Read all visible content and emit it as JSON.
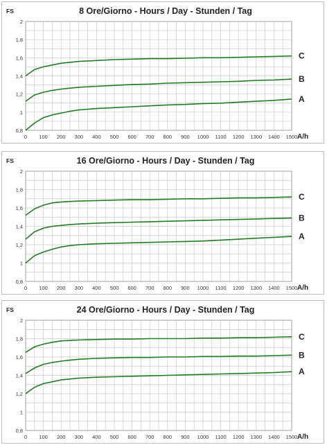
{
  "chart_data": [
    {
      "type": "line",
      "title": "8 Ore/Giorno - Hours / Day - Stunden / Tag",
      "ylabel": "FS",
      "xlabel": "A/h",
      "xlim": [
        0,
        1500
      ],
      "ylim": [
        0.8,
        2
      ],
      "x_ticks": [
        "0",
        "100",
        "200",
        "300",
        "400",
        "500",
        "600",
        "700",
        "800",
        "900",
        "1000",
        "1100",
        "1200",
        "1300",
        "1400",
        "1500"
      ],
      "y_ticks": [
        "0,8",
        "1",
        "1,2",
        "1,4",
        "1,6",
        "1,8",
        "2"
      ],
      "grid": true,
      "x": [
        0,
        50,
        100,
        150,
        200,
        250,
        300,
        400,
        500,
        600,
        700,
        800,
        900,
        1000,
        1100,
        1200,
        1300,
        1400,
        1500
      ],
      "series": [
        {
          "name": "C",
          "values": [
            1.4,
            1.47,
            1.5,
            1.52,
            1.54,
            1.55,
            1.56,
            1.57,
            1.58,
            1.585,
            1.59,
            1.59,
            1.595,
            1.6,
            1.6,
            1.605,
            1.61,
            1.615,
            1.62
          ]
        },
        {
          "name": "B",
          "values": [
            1.12,
            1.19,
            1.22,
            1.24,
            1.255,
            1.265,
            1.275,
            1.285,
            1.295,
            1.305,
            1.31,
            1.32,
            1.325,
            1.33,
            1.335,
            1.34,
            1.35,
            1.355,
            1.365
          ]
        },
        {
          "name": "A",
          "values": [
            0.8,
            0.88,
            0.94,
            0.97,
            0.99,
            1.01,
            1.025,
            1.04,
            1.05,
            1.06,
            1.07,
            1.08,
            1.085,
            1.095,
            1.1,
            1.11,
            1.12,
            1.13,
            1.145
          ]
        }
      ]
    },
    {
      "type": "line",
      "title": "16 Ore/Giorno - Hours / Day - Stunden / Tag",
      "ylabel": "FS",
      "xlabel": "A/h",
      "xlim": [
        0,
        1500
      ],
      "ylim": [
        0.8,
        2
      ],
      "x_ticks": [
        "0",
        "100",
        "200",
        "300",
        "400",
        "500",
        "600",
        "700",
        "800",
        "900",
        "1000",
        "1100",
        "1200",
        "1300",
        "1400",
        "1500"
      ],
      "y_ticks": [
        "0,8",
        "1",
        "1,2",
        "1,4",
        "1,6",
        "1,8",
        "2"
      ],
      "grid": true,
      "x": [
        0,
        50,
        100,
        150,
        200,
        250,
        300,
        400,
        500,
        600,
        700,
        800,
        900,
        1000,
        1100,
        1200,
        1300,
        1400,
        1500
      ],
      "series": [
        {
          "name": "C",
          "values": [
            1.52,
            1.59,
            1.63,
            1.655,
            1.665,
            1.67,
            1.675,
            1.68,
            1.685,
            1.69,
            1.69,
            1.695,
            1.7,
            1.7,
            1.705,
            1.71,
            1.71,
            1.715,
            1.72
          ]
        },
        {
          "name": "B",
          "values": [
            1.26,
            1.34,
            1.38,
            1.4,
            1.41,
            1.42,
            1.425,
            1.435,
            1.44,
            1.445,
            1.45,
            1.455,
            1.46,
            1.465,
            1.47,
            1.475,
            1.48,
            1.485,
            1.49
          ]
        },
        {
          "name": "A",
          "values": [
            1.0,
            1.08,
            1.12,
            1.15,
            1.175,
            1.19,
            1.2,
            1.21,
            1.215,
            1.22,
            1.225,
            1.23,
            1.235,
            1.24,
            1.25,
            1.26,
            1.27,
            1.28,
            1.29
          ]
        }
      ]
    },
    {
      "type": "line",
      "title": "24 Ore/Giorno - Hours / Day - Stunden / Tag",
      "ylabel": "FS",
      "xlabel": "A/h",
      "xlim": [
        0,
        1500
      ],
      "ylim": [
        0.8,
        2
      ],
      "x_ticks": [
        "0",
        "100",
        "200",
        "300",
        "400",
        "500",
        "600",
        "700",
        "800",
        "900",
        "1000",
        "1100",
        "1200",
        "1300",
        "1400",
        "1500"
      ],
      "y_ticks": [
        "0,8",
        "1",
        "1,2",
        "1,4",
        "1,6",
        "1,8",
        "2"
      ],
      "grid": true,
      "x": [
        0,
        50,
        100,
        150,
        200,
        250,
        300,
        400,
        500,
        600,
        700,
        800,
        900,
        1000,
        1100,
        1200,
        1300,
        1400,
        1500
      ],
      "series": [
        {
          "name": "C",
          "values": [
            1.65,
            1.71,
            1.74,
            1.76,
            1.775,
            1.78,
            1.785,
            1.79,
            1.795,
            1.795,
            1.8,
            1.8,
            1.8,
            1.805,
            1.805,
            1.81,
            1.81,
            1.815,
            1.82
          ]
        },
        {
          "name": "B",
          "values": [
            1.42,
            1.48,
            1.52,
            1.54,
            1.555,
            1.565,
            1.575,
            1.585,
            1.59,
            1.595,
            1.595,
            1.6,
            1.6,
            1.605,
            1.605,
            1.61,
            1.61,
            1.615,
            1.62
          ]
        },
        {
          "name": "A",
          "values": [
            1.2,
            1.27,
            1.31,
            1.33,
            1.35,
            1.36,
            1.37,
            1.38,
            1.385,
            1.39,
            1.395,
            1.4,
            1.405,
            1.41,
            1.415,
            1.42,
            1.425,
            1.43,
            1.44
          ]
        }
      ]
    }
  ],
  "colors": {
    "curve": "#1e7d1e",
    "grid": "#c8c8c8",
    "frame": "#9a9a9a"
  }
}
